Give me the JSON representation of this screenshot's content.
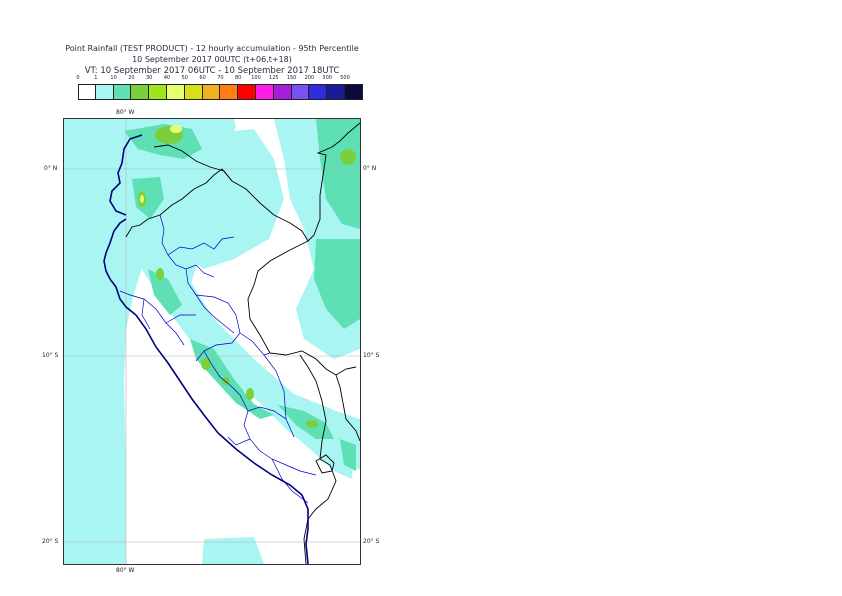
{
  "title": {
    "line1": "Point Rainfall (TEST PRODUCT) - 12 hourly accumulation - 95th Percentile",
    "line2": "10 September 2017 00UTC (t+06,t+18)",
    "line3": "VT: 10 September 2017 06UTC - 10 September 2017 18UTC"
  },
  "colorbar": {
    "ticks": [
      "0",
      "1",
      "10",
      "20",
      "30",
      "40",
      "50",
      "60",
      "70",
      "80",
      "100",
      "125",
      "150",
      "200",
      "300",
      "500"
    ],
    "colors": [
      "#ffffff",
      "#a8f5f2",
      "#5fe0b4",
      "#7ccf3c",
      "#9be61e",
      "#e6ff6e",
      "#d9e01a",
      "#f2b01e",
      "#ff7f16",
      "#ff0000",
      "#ff1ee6",
      "#a61ed9",
      "#7a52f0",
      "#2d2ddc",
      "#1a1a9a",
      "#0a0a3c"
    ]
  },
  "map": {
    "lon_labels": {
      "top": "80° W",
      "bottom": "80° W"
    },
    "lat_labels": [
      "0° N",
      "10° S",
      "20° S"
    ],
    "colors": {
      "ocean_rain": "#a8f5f2",
      "moderate_rain": "#5fe0b4",
      "heavy_rain": "#7ccf3c",
      "very_heavy_rain": "#e6ff6e",
      "coastline": "#000080",
      "country_border": "#000000",
      "region_border": "#0000cc",
      "graticule": "#b4b4b4"
    }
  }
}
